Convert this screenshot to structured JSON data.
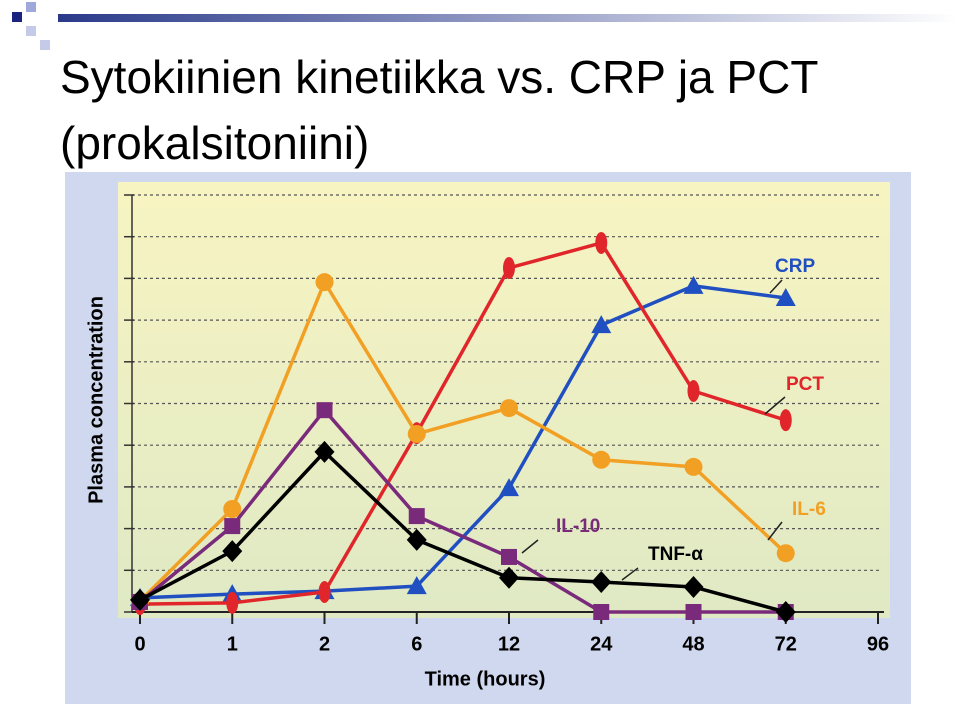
{
  "chart_data": {
    "type": "line",
    "title": "Sytokiinien kinetiikka vs. CRP ja PCT (prokalsitoniini)",
    "xlabel": "Time (hours)",
    "ylabel": "Plasma concentration",
    "categories": [
      "0",
      "1",
      "2",
      "6",
      "12",
      "24",
      "48",
      "72",
      "96"
    ],
    "ylim": [
      0,
      10
    ],
    "yticks": [
      0,
      1,
      2,
      3,
      4,
      5,
      6,
      7,
      8,
      9,
      10
    ],
    "grid": true,
    "series": [
      {
        "name": "CRP",
        "color": "#1f4fc0",
        "marker": "triangle",
        "values": [
          0.34,
          0.43,
          0.5,
          0.62,
          2.97,
          6.88,
          7.82,
          7.53,
          null
        ]
      },
      {
        "name": "PCT",
        "color": "#e0262a",
        "marker": "ellipse",
        "values": [
          0.19,
          0.22,
          0.48,
          4.29,
          8.25,
          8.85,
          5.3,
          4.6,
          null
        ]
      },
      {
        "name": "IL-6",
        "color": "#f2a024",
        "marker": "circle",
        "values": [
          0.26,
          2.47,
          7.91,
          4.27,
          4.89,
          3.65,
          3.48,
          1.41,
          null
        ]
      },
      {
        "name": "IL-10",
        "color": "#7a2a7a",
        "marker": "square",
        "values": [
          0.24,
          2.06,
          4.84,
          2.3,
          1.32,
          0,
          0,
          0,
          null
        ]
      },
      {
        "name": "TNF-α",
        "color": "#000000",
        "marker": "diamond",
        "values": [
          0.29,
          1.46,
          3.84,
          1.73,
          0.82,
          0.72,
          0.6,
          0,
          null
        ]
      }
    ]
  }
}
